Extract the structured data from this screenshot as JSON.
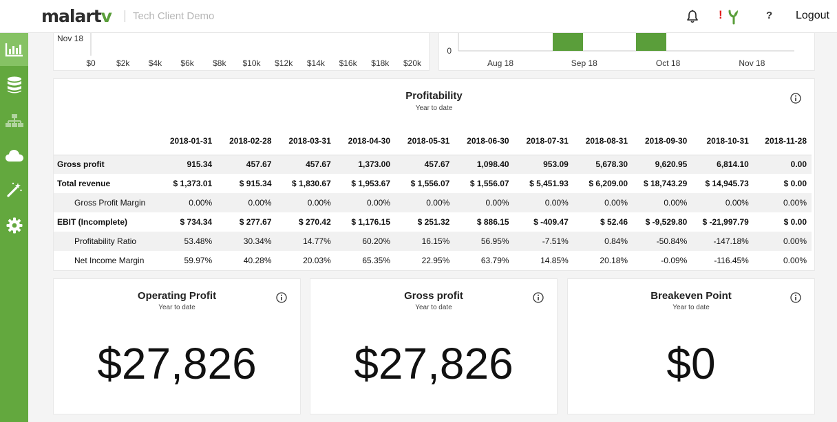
{
  "header": {
    "logo_main": "malart",
    "logo_accent": "v",
    "client_name": "Tech Client Demo",
    "alert_mark": "!",
    "help_label": "?",
    "logout_label": "Logout"
  },
  "sidebar": {
    "items": [
      {
        "name": "dashboard",
        "icon": "bar-chart-icon",
        "active": true
      },
      {
        "name": "data",
        "icon": "database-icon",
        "active": false
      },
      {
        "name": "hierarchy",
        "icon": "sitemap-icon",
        "active": false
      },
      {
        "name": "cloud",
        "icon": "cloud-icon",
        "active": false
      },
      {
        "name": "wizard",
        "icon": "magic-wand-icon",
        "active": false
      },
      {
        "name": "settings",
        "icon": "gear-icon",
        "active": false
      }
    ]
  },
  "top_charts": {
    "left": {
      "row_label": "Nov 18",
      "x_ticks": [
        "$0",
        "$2k",
        "$4k",
        "$6k",
        "$8k",
        "$10k",
        "$12k",
        "$14k",
        "$16k",
        "$18k",
        "$20k"
      ]
    },
    "right": {
      "y_tick": "0",
      "x_ticks": [
        "Aug 18",
        "Sep 18",
        "Oct 18",
        "Nov 18"
      ],
      "bar_color": "#5a9e3a"
    }
  },
  "profitability": {
    "title": "Profitability",
    "subtitle": "Year to date",
    "columns": [
      "2018-01-31",
      "2018-02-28",
      "2018-03-31",
      "2018-04-30",
      "2018-05-31",
      "2018-06-30",
      "2018-07-31",
      "2018-08-31",
      "2018-09-30",
      "2018-10-31",
      "2018-11-28"
    ],
    "rows": [
      {
        "label": "Gross profit",
        "values": [
          "915.34",
          "457.67",
          "457.67",
          "1,373.00",
          "457.67",
          "1,098.40",
          "953.09",
          "5,678.30",
          "9,620.95",
          "6,814.10",
          "0.00"
        ]
      },
      {
        "label": "Total revenue",
        "values": [
          "$ 1,373.01",
          "$ 915.34",
          "$ 1,830.67",
          "$ 1,953.67",
          "$ 1,556.07",
          "$ 1,556.07",
          "$ 5,451.93",
          "$ 6,209.00",
          "$ 18,743.29",
          "$ 14,945.73",
          "$ 0.00"
        ]
      },
      {
        "label": "Gross Profit Margin",
        "values": [
          "0.00%",
          "0.00%",
          "0.00%",
          "0.00%",
          "0.00%",
          "0.00%",
          "0.00%",
          "0.00%",
          "0.00%",
          "0.00%",
          "0.00%"
        ]
      },
      {
        "label": "EBIT (Incomplete)",
        "values": [
          "$ 734.34",
          "$ 277.67",
          "$ 270.42",
          "$ 1,176.15",
          "$ 251.32",
          "$ 886.15",
          "$ -409.47",
          "$ 52.46",
          "$ -9,529.80",
          "$ -21,997.79",
          "$ 0.00"
        ]
      },
      {
        "label": "Profitability Ratio",
        "values": [
          "53.48%",
          "30.34%",
          "14.77%",
          "60.20%",
          "16.15%",
          "56.95%",
          "-7.51%",
          "0.84%",
          "-50.84%",
          "-147.18%",
          "0.00%"
        ]
      },
      {
        "label": "Net Income Margin",
        "values": [
          "59.97%",
          "40.28%",
          "20.03%",
          "65.35%",
          "22.95%",
          "63.79%",
          "14.85%",
          "20.18%",
          "-0.09%",
          "-116.45%",
          "0.00%"
        ]
      }
    ]
  },
  "kpis": [
    {
      "title": "Operating Profit",
      "subtitle": "Year to date",
      "value": "$27,826"
    },
    {
      "title": "Gross profit",
      "subtitle": "Year to date",
      "value": "$27,826"
    },
    {
      "title": "Breakeven Point",
      "subtitle": "Year to date",
      "value": "$0"
    }
  ],
  "colors": {
    "brand_green": "#63a83e",
    "sidebar_active": "#86c264",
    "alert_red": "#e21b1b"
  }
}
